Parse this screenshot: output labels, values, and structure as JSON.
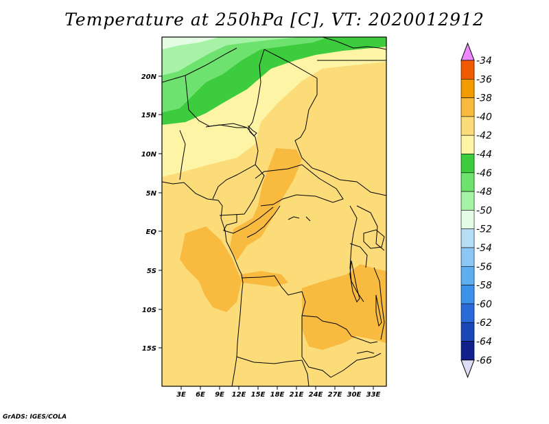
{
  "title": "Temperature at 250hPa [C], VT: 2020012912",
  "credit": "GrADS: IGES/COLA",
  "map": {
    "lat_labels": [
      "20N",
      "15N",
      "10N",
      "5N",
      "EQ",
      "5S",
      "10S",
      "15S"
    ],
    "lon_labels": [
      "3E",
      "6E",
      "9E",
      "12E",
      "15E",
      "18E",
      "21E",
      "24E",
      "27E",
      "30E",
      "33E"
    ]
  },
  "colorbar": {
    "labels": [
      "-34",
      "-36",
      "-38",
      "-40",
      "-42",
      "-44",
      "-46",
      "-48",
      "-50",
      "-52",
      "-54",
      "-56",
      "-58",
      "-60",
      "-62",
      "-64",
      "-66"
    ],
    "colors": [
      "#e8ff",
      "#f05a00",
      "#f39a00",
      "#f8bb40",
      "#fbdc78",
      "#fdf4a6",
      "#3dcc3d",
      "#6ee26e",
      "#a6f2a6",
      "#e4fce4",
      "#b6dcf6",
      "#8cc6f4",
      "#5eaef0",
      "#3c92e8",
      "#2a6ad8",
      "#1a46b8",
      "#10208c",
      "#ddddf8"
    ]
  },
  "chart_data": {
    "type": "heatmap",
    "title": "Temperature at 250hPa [C], VT: 2020012912",
    "units": "C",
    "valid_time": "2020012912",
    "levels": [
      -66,
      -64,
      -62,
      -60,
      -58,
      -56,
      -54,
      -52,
      -50,
      -48,
      -46,
      -44,
      -42,
      -40,
      -38,
      -36,
      -34
    ],
    "lon_range_deg_e": [
      0,
      35
    ],
    "lat_range_deg": [
      -20,
      24
    ],
    "field_range_c": [
      -48,
      -38
    ]
  }
}
